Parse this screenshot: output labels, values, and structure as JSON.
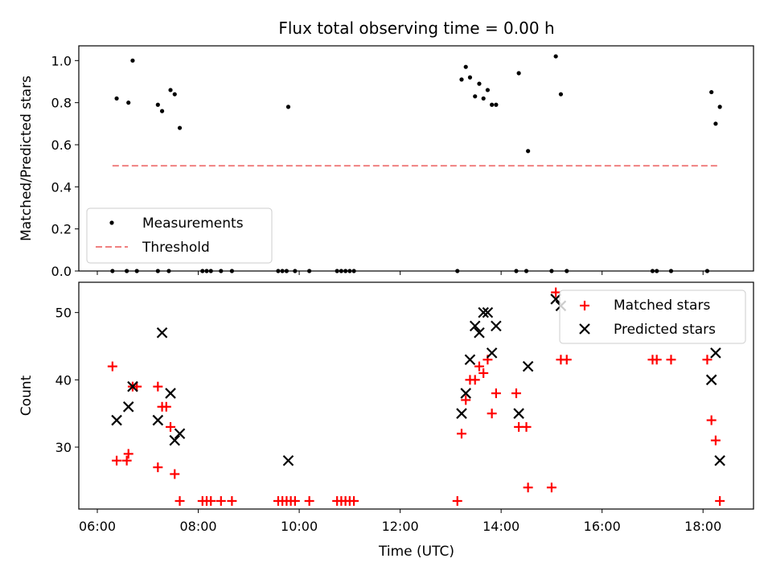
{
  "chart_data": [
    {
      "type": "scatter",
      "title": "Flux total observing time = 0.00 h",
      "xlabel": "",
      "ylabel": "Matched/Predicted stars",
      "xlim": [
        "05:38",
        "19:00"
      ],
      "ylim": [
        0,
        1.07
      ],
      "yticks": [
        "0.0",
        "0.2",
        "0.4",
        "0.6",
        "0.8",
        "1.0"
      ],
      "legend": {
        "placement": "lower-left",
        "entries": [
          "Measurements",
          "Threshold"
        ]
      },
      "colors": {
        "measurements": "#000000",
        "threshold": "#f08080"
      },
      "series": [
        {
          "name": "Measurements",
          "marker": "dot",
          "points": [
            [
              "06:18",
              0.0
            ],
            [
              "06:23",
              0.82
            ],
            [
              "06:35",
              0.0
            ],
            [
              "06:37",
              0.8
            ],
            [
              "06:42",
              1.0
            ],
            [
              "06:47",
              0.0
            ],
            [
              "07:12",
              0.79
            ],
            [
              "07:12",
              0.0
            ],
            [
              "07:17",
              0.76
            ],
            [
              "07:25",
              0.0
            ],
            [
              "07:27",
              0.86
            ],
            [
              "07:32",
              0.84
            ],
            [
              "07:38",
              0.68
            ],
            [
              "08:05",
              0.0
            ],
            [
              "08:10",
              0.0
            ],
            [
              "08:15",
              0.0
            ],
            [
              "08:27",
              0.0
            ],
            [
              "08:40",
              0.0
            ],
            [
              "09:35",
              0.0
            ],
            [
              "09:40",
              0.0
            ],
            [
              "09:45",
              0.0
            ],
            [
              "09:47",
              0.78
            ],
            [
              "09:55",
              0.0
            ],
            [
              "10:12",
              0.0
            ],
            [
              "10:45",
              0.0
            ],
            [
              "10:50",
              0.0
            ],
            [
              "10:55",
              0.0
            ],
            [
              "11:00",
              0.0
            ],
            [
              "11:05",
              0.0
            ],
            [
              "13:08",
              0.0
            ],
            [
              "13:13",
              0.91
            ],
            [
              "13:18",
              0.97
            ],
            [
              "13:23",
              0.92
            ],
            [
              "13:29",
              0.83
            ],
            [
              "13:34",
              0.89
            ],
            [
              "13:39",
              0.82
            ],
            [
              "13:44",
              0.86
            ],
            [
              "13:49",
              0.79
            ],
            [
              "13:54",
              0.79
            ],
            [
              "14:18",
              0.0
            ],
            [
              "14:21",
              0.94
            ],
            [
              "14:30",
              0.0
            ],
            [
              "14:32",
              0.57
            ],
            [
              "15:00",
              0.0
            ],
            [
              "15:05",
              1.02
            ],
            [
              "15:11",
              0.84
            ],
            [
              "15:18",
              0.0
            ],
            [
              "17:00",
              0.0
            ],
            [
              "17:05",
              0.0
            ],
            [
              "17:22",
              0.0
            ],
            [
              "18:05",
              0.0
            ],
            [
              "18:10",
              0.85
            ],
            [
              "18:15",
              0.7
            ],
            [
              "18:20",
              0.78
            ]
          ]
        },
        {
          "name": "Threshold",
          "marker": "dashed-line",
          "points": [
            [
              "06:18",
              0.5
            ],
            [
              "18:20",
              0.5
            ]
          ]
        }
      ]
    },
    {
      "type": "scatter",
      "title": "",
      "xlabel": "Time (UTC)",
      "ylabel": "Count",
      "xlim": [
        "05:38",
        "19:00"
      ],
      "ylim": [
        20.8,
        54.5
      ],
      "yticks": [
        "30",
        "40",
        "50"
      ],
      "xticks": [
        "06:00",
        "08:00",
        "10:00",
        "12:00",
        "14:00",
        "16:00",
        "18:00"
      ],
      "legend": {
        "placement": "top-right",
        "entries": [
          "Matched stars",
          "Predicted stars"
        ]
      },
      "colors": {
        "matched": "#ff0000",
        "predicted": "#000000"
      },
      "series": [
        {
          "name": "Matched stars",
          "marker": "plus",
          "points": [
            [
              "06:18",
              42
            ],
            [
              "06:23",
              28
            ],
            [
              "06:35",
              28
            ],
            [
              "06:37",
              29
            ],
            [
              "06:42",
              39
            ],
            [
              "06:47",
              39
            ],
            [
              "07:12",
              39
            ],
            [
              "07:12",
              27
            ],
            [
              "07:17",
              36
            ],
            [
              "07:22",
              36
            ],
            [
              "07:27",
              33
            ],
            [
              "07:32",
              26
            ],
            [
              "07:38",
              22
            ],
            [
              "08:05",
              22
            ],
            [
              "08:10",
              22
            ],
            [
              "08:15",
              22
            ],
            [
              "08:27",
              22
            ],
            [
              "08:40",
              22
            ],
            [
              "09:35",
              22
            ],
            [
              "09:40",
              22
            ],
            [
              "09:45",
              22
            ],
            [
              "09:50",
              22
            ],
            [
              "09:55",
              22
            ],
            [
              "10:12",
              22
            ],
            [
              "10:45",
              22
            ],
            [
              "10:50",
              22
            ],
            [
              "10:55",
              22
            ],
            [
              "11:00",
              22
            ],
            [
              "11:05",
              22
            ],
            [
              "13:08",
              22
            ],
            [
              "13:13",
              32
            ],
            [
              "13:18",
              37
            ],
            [
              "13:23",
              40
            ],
            [
              "13:29",
              40
            ],
            [
              "13:34",
              42
            ],
            [
              "13:39",
              41
            ],
            [
              "13:44",
              43
            ],
            [
              "13:49",
              35
            ],
            [
              "13:54",
              38
            ],
            [
              "14:18",
              38
            ],
            [
              "14:21",
              33
            ],
            [
              "14:30",
              33
            ],
            [
              "14:32",
              24
            ],
            [
              "15:00",
              24
            ],
            [
              "15:05",
              53
            ],
            [
              "15:11",
              43
            ],
            [
              "15:18",
              43
            ],
            [
              "17:00",
              43
            ],
            [
              "17:05",
              43
            ],
            [
              "17:22",
              43
            ],
            [
              "18:05",
              43
            ],
            [
              "18:10",
              34
            ],
            [
              "18:15",
              31
            ],
            [
              "18:20",
              22
            ]
          ]
        },
        {
          "name": "Predicted stars",
          "marker": "x",
          "points": [
            [
              "06:23",
              34
            ],
            [
              "06:37",
              36
            ],
            [
              "06:42",
              39
            ],
            [
              "07:12",
              34
            ],
            [
              "07:17",
              47
            ],
            [
              "07:27",
              38
            ],
            [
              "07:32",
              31
            ],
            [
              "07:38",
              32
            ],
            [
              "09:47",
              28
            ],
            [
              "13:13",
              35
            ],
            [
              "13:18",
              38
            ],
            [
              "13:23",
              43
            ],
            [
              "13:29",
              48
            ],
            [
              "13:34",
              47
            ],
            [
              "13:39",
              50
            ],
            [
              "13:44",
              50
            ],
            [
              "13:49",
              44
            ],
            [
              "13:54",
              48
            ],
            [
              "14:21",
              35
            ],
            [
              "14:32",
              42
            ],
            [
              "15:05",
              52
            ],
            [
              "15:11",
              51
            ],
            [
              "18:10",
              40
            ],
            [
              "18:15",
              44
            ],
            [
              "18:20",
              28
            ]
          ]
        }
      ]
    }
  ]
}
